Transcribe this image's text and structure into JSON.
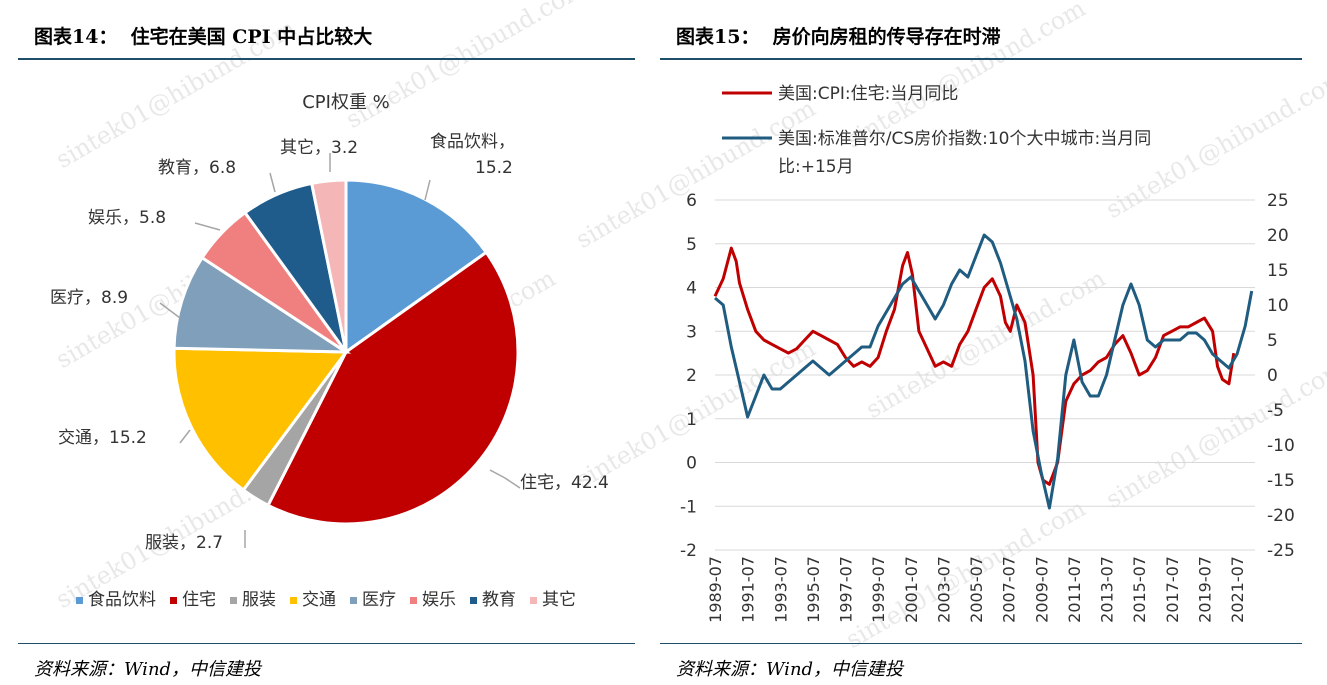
{
  "left": {
    "title": "图表14：  住宅在美国 CPI 中占比较大",
    "source": "资料来源：Wind，中信建投"
  },
  "right": {
    "title": "图表15：  房价向房租的传导存在时滞",
    "source": "资料来源：Wind，中信建投"
  },
  "watermark": "sintek01@hibund.com",
  "chart_data": [
    {
      "type": "pie",
      "title": "CPI权重 %",
      "categories": [
        "食品饮料",
        "住宅",
        "服装",
        "交通",
        "医疗",
        "娱乐",
        "教育",
        "其它"
      ],
      "values": [
        15.2,
        42.4,
        2.7,
        15.2,
        8.9,
        5.8,
        6.8,
        3.2
      ],
      "colors": [
        "#5b9bd5",
        "#c00000",
        "#a5a5a5",
        "#ffc000",
        "#7f9fba",
        "#f08080",
        "#1f5c8c",
        "#f4b6b6"
      ],
      "data_labels": [
        "食品饮料，\n15.2",
        "住宅，42.4",
        "服装，2.7",
        "交通，15.2",
        "医疗，8.9",
        "娱乐，5.8",
        "教育，6.8",
        "其它，3.2"
      ],
      "legend_placement": "bottom"
    },
    {
      "type": "line",
      "legend_placement": "top",
      "y_left": {
        "range": [
          -2,
          6
        ],
        "ticks": [
          6,
          5,
          4,
          3,
          2,
          1,
          0,
          -1,
          -2
        ]
      },
      "y_right": {
        "range": [
          -25,
          25
        ],
        "ticks": [
          25,
          20,
          15,
          10,
          5,
          0,
          -5,
          -10,
          -15,
          -20,
          -25
        ]
      },
      "x_ticks": [
        "1989-07",
        "1991-07",
        "1993-07",
        "1995-07",
        "1997-07",
        "1999-07",
        "2001-07",
        "2003-07",
        "2005-07",
        "2007-07",
        "2009-07",
        "2011-07",
        "2013-07",
        "2015-07",
        "2017-07",
        "2019-07",
        "2021-07"
      ],
      "x_range": [
        1989.5,
        1989.5,
        2022.6
      ],
      "grid": true,
      "series": [
        {
          "name": "美国:CPI:住宅:当月同比",
          "axis": "left",
          "color": "#c00000",
          "x": [
            1989.5,
            1990.0,
            1990.5,
            1990.8,
            1991.0,
            1991.5,
            1992.0,
            1992.5,
            1993.0,
            1993.5,
            1994.0,
            1994.5,
            1995.0,
            1995.5,
            1996.0,
            1996.5,
            1997.0,
            1997.5,
            1998.0,
            1998.5,
            1999.0,
            1999.5,
            2000.0,
            2000.5,
            2001.0,
            2001.3,
            2001.6,
            2002.0,
            2002.5,
            2003.0,
            2003.5,
            2004.0,
            2004.5,
            2005.0,
            2005.5,
            2006.0,
            2006.5,
            2007.0,
            2007.3,
            2007.6,
            2008.0,
            2008.5,
            2009.0,
            2009.3,
            2009.6,
            2010.0,
            2010.5,
            2011.0,
            2011.5,
            2012.0,
            2012.5,
            2013.0,
            2013.5,
            2014.0,
            2014.5,
            2015.0,
            2015.5,
            2016.0,
            2016.5,
            2017.0,
            2017.5,
            2018.0,
            2018.5,
            2019.0,
            2019.5,
            2020.0,
            2020.3,
            2020.6,
            2021.0,
            2021.3
          ],
          "values": [
            3.8,
            4.2,
            4.9,
            4.6,
            4.1,
            3.5,
            3.0,
            2.8,
            2.7,
            2.6,
            2.5,
            2.6,
            2.8,
            3.0,
            2.9,
            2.8,
            2.7,
            2.4,
            2.2,
            2.3,
            2.2,
            2.4,
            3.0,
            3.5,
            4.5,
            4.8,
            4.3,
            3.0,
            2.6,
            2.2,
            2.3,
            2.2,
            2.7,
            3.0,
            3.5,
            4.0,
            4.2,
            3.8,
            3.2,
            3.0,
            3.6,
            3.2,
            2.0,
            0.0,
            -0.4,
            -0.5,
            0.0,
            1.4,
            1.8,
            2.0,
            2.1,
            2.3,
            2.4,
            2.7,
            2.9,
            2.5,
            2.0,
            2.1,
            2.4,
            2.9,
            3.0,
            3.1,
            3.1,
            3.2,
            3.3,
            3.0,
            2.2,
            1.9,
            1.8,
            2.5
          ]
        },
        {
          "name": "美国:标准普尔/CS房价指数:10个大中城市:当月同比:+15月",
          "axis": "right",
          "color": "#1f5c80",
          "x": [
            1989.5,
            1990.0,
            1990.5,
            1991.0,
            1991.5,
            1992.0,
            1992.5,
            1993.0,
            1993.5,
            1994.0,
            1994.5,
            1995.0,
            1995.5,
            1996.0,
            1996.5,
            1997.0,
            1997.5,
            1998.0,
            1998.5,
            1999.0,
            1999.5,
            2000.0,
            2000.5,
            2001.0,
            2001.5,
            2002.0,
            2002.5,
            2003.0,
            2003.5,
            2004.0,
            2004.5,
            2005.0,
            2005.5,
            2006.0,
            2006.5,
            2007.0,
            2007.5,
            2008.0,
            2008.5,
            2009.0,
            2009.5,
            2010.0,
            2010.5,
            2011.0,
            2011.5,
            2012.0,
            2012.5,
            2013.0,
            2013.5,
            2014.0,
            2014.5,
            2015.0,
            2015.5,
            2016.0,
            2016.5,
            2017.0,
            2017.5,
            2018.0,
            2018.5,
            2019.0,
            2019.5,
            2020.0,
            2020.5,
            2021.0,
            2021.5,
            2022.0,
            2022.4
          ],
          "values": [
            11,
            10,
            4,
            -1,
            -6,
            -3,
            0,
            -2,
            -2,
            -1,
            0,
            1,
            2,
            1,
            0,
            1,
            2,
            3,
            4,
            4,
            7,
            9,
            11,
            13,
            14,
            12,
            10,
            8,
            10,
            13,
            15,
            14,
            17,
            20,
            19,
            16,
            12,
            8,
            2,
            -8,
            -14,
            -19,
            -12,
            0,
            5,
            -1,
            -3,
            -3,
            0,
            5,
            10,
            13,
            10,
            5,
            4,
            5,
            5,
            5,
            6,
            6,
            5,
            3,
            2,
            1,
            3,
            7,
            12
          ]
        }
      ]
    }
  ]
}
